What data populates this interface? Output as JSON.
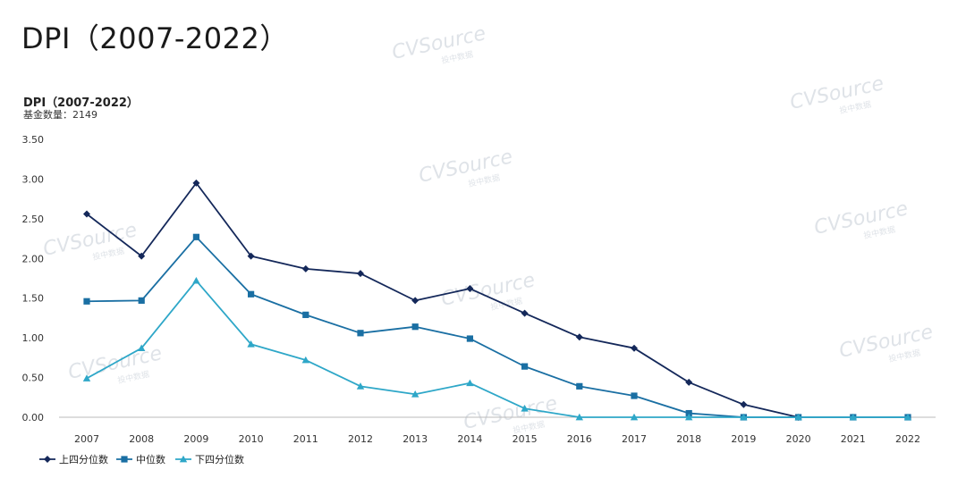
{
  "page_title": "DPI（2007-2022）",
  "watermark": {
    "brand": "CVSource",
    "sub": "投中数据"
  },
  "chart_data": {
    "type": "line",
    "title": "DPI（2007-2022）",
    "subtitle": "基金数量：2149",
    "xlabel": "",
    "ylabel": "",
    "categories": [
      "2007",
      "2008",
      "2009",
      "2010",
      "2011",
      "2012",
      "2013",
      "2014",
      "2015",
      "2016",
      "2017",
      "2018",
      "2019",
      "2020",
      "2021",
      "2022"
    ],
    "ylim": [
      0,
      3.5
    ],
    "yticks": [
      "0.00",
      "0.50",
      "1.00",
      "1.50",
      "2.00",
      "2.50",
      "3.00",
      "3.50"
    ],
    "grid": false,
    "legend_position": "bottom-left",
    "series": [
      {
        "name": "上四分位数",
        "color": "#14285a",
        "marker": "diamond",
        "values": [
          2.56,
          2.03,
          2.95,
          2.03,
          1.87,
          1.81,
          1.47,
          1.62,
          1.31,
          1.01,
          0.87,
          0.44,
          0.16,
          0.0,
          null,
          null
        ]
      },
      {
        "name": "中位数",
        "color": "#1a6fa3",
        "marker": "square",
        "values": [
          1.46,
          1.47,
          2.27,
          1.55,
          1.29,
          1.06,
          1.14,
          0.99,
          0.64,
          0.39,
          0.27,
          0.05,
          0.0,
          0.0,
          0.0,
          0.0
        ]
      },
      {
        "name": "下四分位数",
        "color": "#2ea7c8",
        "marker": "triangle",
        "values": [
          0.49,
          0.87,
          1.72,
          0.92,
          0.72,
          0.39,
          0.29,
          0.43,
          0.11,
          0.0,
          0.0,
          0.0,
          0.0,
          0.0,
          0.0,
          0.0
        ]
      }
    ]
  }
}
